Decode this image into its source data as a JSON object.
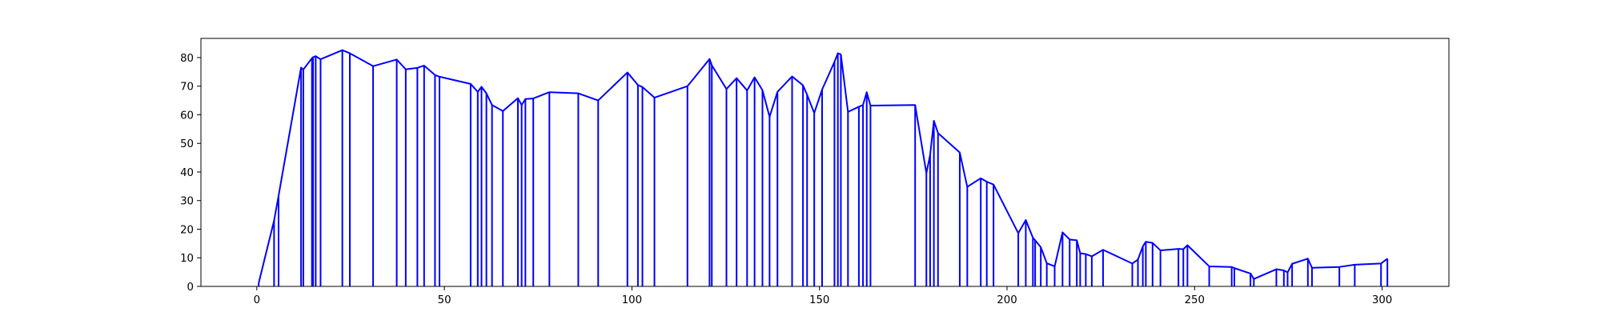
{
  "chart_data": {
    "type": "line",
    "title": "",
    "xlabel": "",
    "ylabel": "",
    "xlim": [
      -14.9,
      317.8
    ],
    "ylim": [
      0,
      86.7
    ],
    "xticks": [
      0,
      50,
      100,
      150,
      200,
      250,
      300
    ],
    "yticks": [
      0,
      10,
      20,
      30,
      40,
      50,
      60,
      70,
      80
    ],
    "grid": false,
    "colors": {
      "line": "#0000ff",
      "axes": "#000000",
      "background": "#ffffff"
    },
    "drop_lines": true,
    "series": [
      {
        "x": [
          0.5,
          4.6,
          5.8,
          11.8,
          12.4,
          14.7,
          15.0,
          15.7,
          17.0,
          22.8,
          24.8,
          31.0,
          37.3,
          39.7,
          42.8,
          44.6,
          47.5,
          48.7,
          57.0,
          58.9,
          59.9,
          61.2,
          62.7,
          65.6,
          69.6,
          70.6,
          71.6,
          73.7,
          78.0,
          85.7,
          91.0,
          98.8,
          101.6,
          102.8,
          106.0,
          114.8,
          120.7,
          121.3,
          125.2,
          127.9,
          130.7,
          132.7,
          134.8,
          136.7,
          138.8,
          142.7,
          145.6,
          146.7,
          148.6,
          150.7,
          154.0,
          154.9,
          155.7,
          157.6,
          160.5,
          161.6,
          162.6,
          163.6,
          175.5,
          178.5,
          179.5,
          180.5,
          181.6,
          187.4,
          189.4,
          193.0,
          194.6,
          196.4,
          203.0,
          205.0,
          206.9,
          207.5,
          209.0,
          210.6,
          212.7,
          214.8,
          216.7,
          218.6,
          219.5,
          221.0,
          222.6,
          225.6,
          233.4,
          234.9,
          236.2,
          237.0,
          238.8,
          240.9,
          245.7,
          247.0,
          248.1,
          253.9,
          259.9,
          260.6,
          264.9,
          265.8,
          271.8,
          273.8,
          274.8,
          276.0,
          280.2,
          281.3,
          288.6,
          292.7,
          299.7,
          301.4
        ]
      },
      {
        "y": [
          1.2,
          23.0,
          31.7,
          76.5,
          75.8,
          79.8,
          80.1,
          80.5,
          79.4,
          82.6,
          81.5,
          77.0,
          79.3,
          75.9,
          76.4,
          77.2,
          73.9,
          73.3,
          70.8,
          68.0,
          69.8,
          67.5,
          63.4,
          61.3,
          65.8,
          63.4,
          65.5,
          65.7,
          67.9,
          67.5,
          65.0,
          74.8,
          70.4,
          69.7,
          66.0,
          70.0,
          79.5,
          77.3,
          69.0,
          72.8,
          68.5,
          73.1,
          68.6,
          59.3,
          68.0,
          73.4,
          70.3,
          67.0,
          60.6,
          68.8,
          78.5,
          81.5,
          81.1,
          61.0,
          62.8,
          63.4,
          67.9,
          63.2,
          63.4,
          39.6,
          46.0,
          57.9,
          53.6,
          46.8,
          34.8,
          37.8,
          36.6,
          35.6,
          18.6,
          23.2,
          17.0,
          16.1,
          13.7,
          8.1,
          7.0,
          18.9,
          16.4,
          16.1,
          11.6,
          11.3,
          10.5,
          12.8,
          8.0,
          9.4,
          14.0,
          15.6,
          15.2,
          12.6,
          13.1,
          13.0,
          14.4,
          7.0,
          6.8,
          6.4,
          4.5,
          2.6,
          6.0,
          5.6,
          4.9,
          7.9,
          9.7,
          6.5,
          6.8,
          7.6,
          8.0,
          9.7
        ]
      }
    ]
  }
}
